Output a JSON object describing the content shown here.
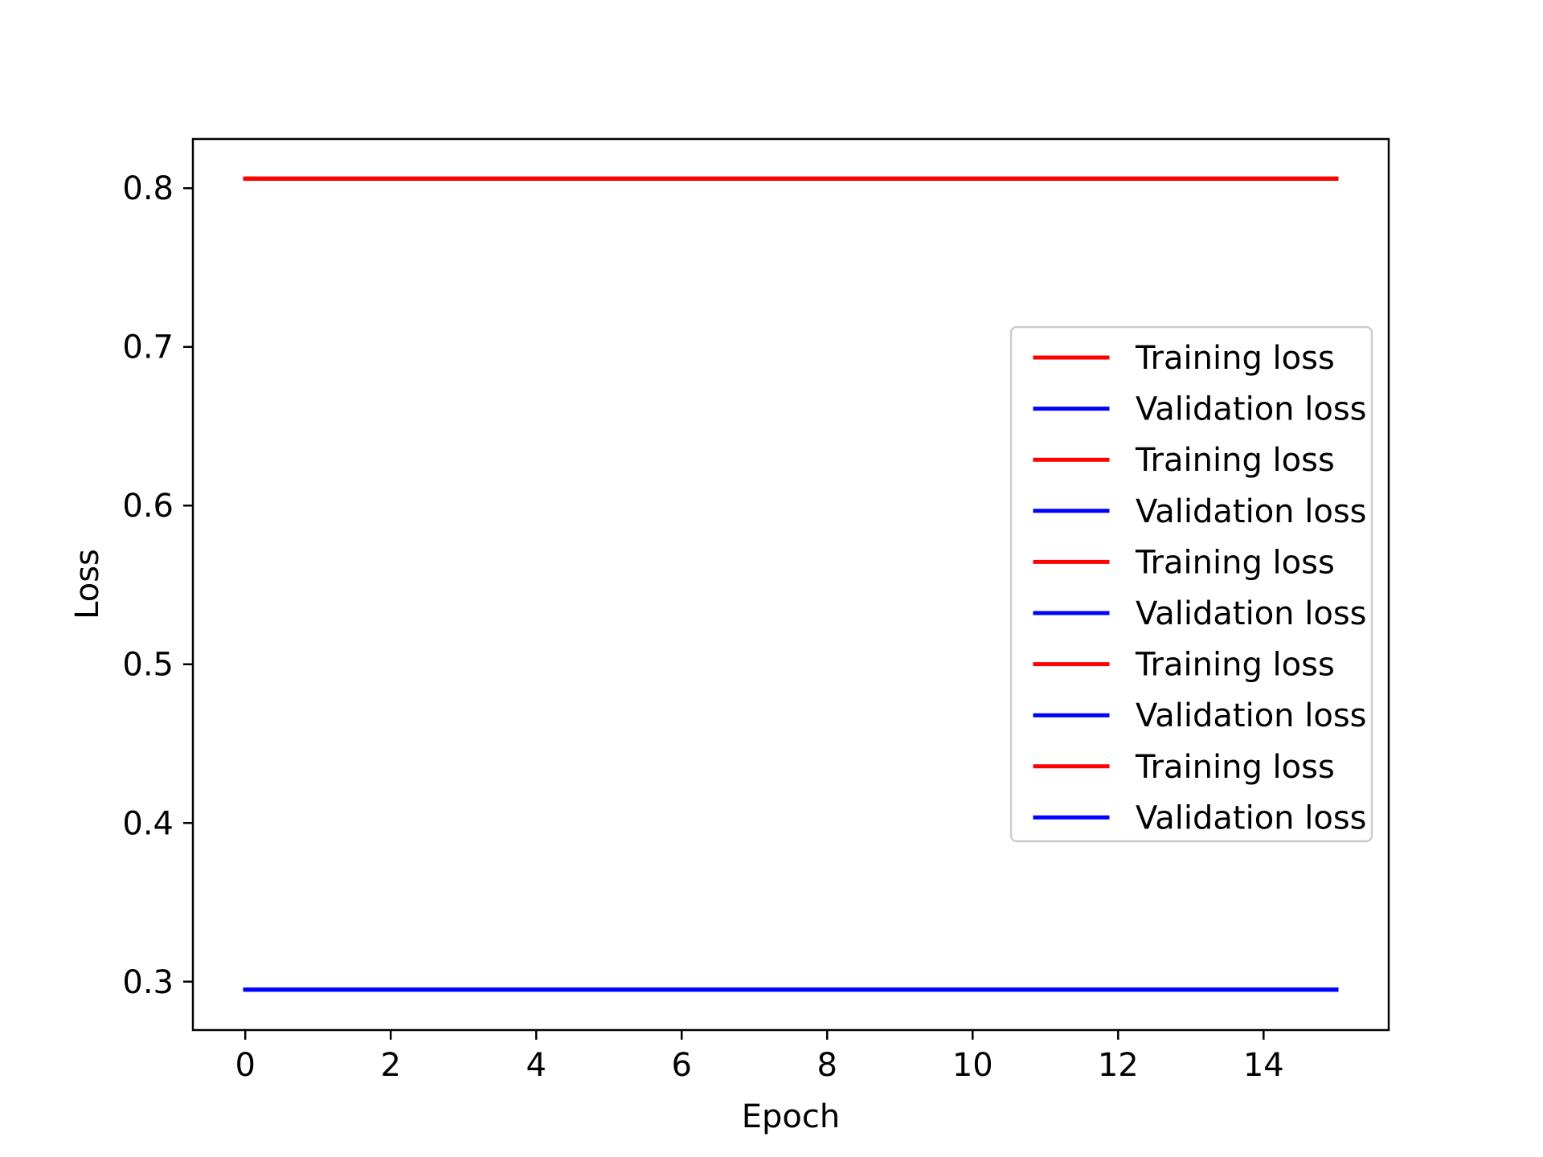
{
  "chart_data": {
    "type": "line",
    "title": "",
    "xlabel": "Epoch",
    "ylabel": "Loss",
    "xlim": [
      -0.72,
      15.72
    ],
    "ylim": [
      0.2695,
      0.831
    ],
    "xticks": [
      0,
      2,
      4,
      6,
      8,
      10,
      12,
      14
    ],
    "yticks": [
      0.3,
      0.4,
      0.5,
      0.6,
      0.7,
      0.8
    ],
    "xtick_labels": [
      "0",
      "2",
      "4",
      "6",
      "8",
      "10",
      "12",
      "14"
    ],
    "ytick_labels": [
      "0.3",
      "0.4",
      "0.5",
      "0.6",
      "0.7",
      "0.8"
    ],
    "grid": false,
    "legend_position": "center-right",
    "series": [
      {
        "name": "Training loss",
        "color": "#ff0000",
        "x": [
          0,
          15
        ],
        "y": [
          0.806,
          0.806
        ]
      },
      {
        "name": "Validation loss",
        "color": "#0000ff",
        "x": [
          0,
          15
        ],
        "y": [
          0.295,
          0.295
        ]
      },
      {
        "name": "Training loss",
        "color": "#ff0000",
        "x": [
          0,
          15
        ],
        "y": [
          0.806,
          0.806
        ]
      },
      {
        "name": "Validation loss",
        "color": "#0000ff",
        "x": [
          0,
          15
        ],
        "y": [
          0.295,
          0.295
        ]
      },
      {
        "name": "Training loss",
        "color": "#ff0000",
        "x": [
          0,
          15
        ],
        "y": [
          0.806,
          0.806
        ]
      },
      {
        "name": "Validation loss",
        "color": "#0000ff",
        "x": [
          0,
          15
        ],
        "y": [
          0.295,
          0.295
        ]
      },
      {
        "name": "Training loss",
        "color": "#ff0000",
        "x": [
          0,
          15
        ],
        "y": [
          0.806,
          0.806
        ]
      },
      {
        "name": "Validation loss",
        "color": "#0000ff",
        "x": [
          0,
          15
        ],
        "y": [
          0.295,
          0.295
        ]
      },
      {
        "name": "Training loss",
        "color": "#ff0000",
        "x": [
          0,
          15
        ],
        "y": [
          0.806,
          0.806
        ]
      },
      {
        "name": "Validation loss",
        "color": "#0000ff",
        "x": [
          0,
          15
        ],
        "y": [
          0.295,
          0.295
        ]
      }
    ]
  }
}
